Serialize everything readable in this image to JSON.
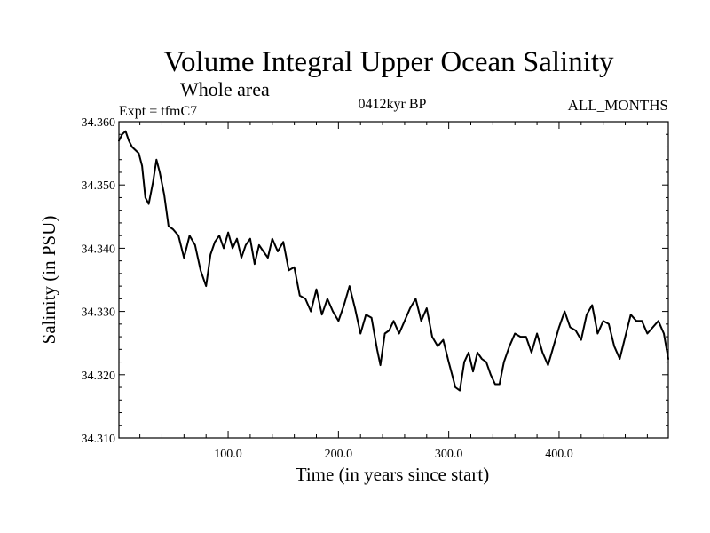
{
  "header": {
    "title": "Volume Integral Upper Ocean Salinity",
    "subtitle": "Whole area",
    "expt": "Expt = tfmC7",
    "period": "0412kyr BP",
    "months": "ALL_MONTHS"
  },
  "chart_data": {
    "type": "line",
    "title": "Volume Integral Upper Ocean Salinity",
    "subtitle": "Whole area",
    "xlabel": "Time (in years since start)",
    "ylabel": "Salinity (in PSU)",
    "xlim": [
      1,
      499
    ],
    "ylim": [
      34.31,
      34.36
    ],
    "x_ticks": [
      100,
      200,
      300,
      400
    ],
    "x_tick_labels": [
      "100.0",
      "200.0",
      "300.0",
      "400.0"
    ],
    "y_ticks": [
      34.31,
      34.32,
      34.33,
      34.34,
      34.35,
      34.36
    ],
    "y_tick_labels": [
      "34.310",
      "34.320",
      "34.330",
      "34.340",
      "34.350",
      "34.360"
    ],
    "grid": false,
    "series": [
      {
        "name": "salinity",
        "color": "#000000",
        "x": [
          1,
          4,
          7,
          10,
          13,
          16,
          19,
          22,
          25,
          28,
          32,
          35,
          38,
          42,
          46,
          50,
          55,
          60,
          65,
          70,
          75,
          80,
          84,
          88,
          92,
          96,
          100,
          104,
          108,
          112,
          116,
          120,
          124,
          128,
          132,
          136,
          140,
          145,
          150,
          155,
          160,
          165,
          170,
          175,
          180,
          185,
          190,
          195,
          200,
          205,
          210,
          215,
          220,
          225,
          230,
          235,
          238,
          242,
          246,
          250,
          255,
          260,
          265,
          270,
          275,
          280,
          285,
          290,
          295,
          300,
          303,
          306,
          310,
          314,
          318,
          322,
          326,
          330,
          334,
          338,
          342,
          346,
          350,
          355,
          360,
          365,
          370,
          375,
          380,
          385,
          390,
          395,
          400,
          405,
          410,
          415,
          420,
          425,
          430,
          435,
          440,
          445,
          450,
          455,
          460,
          465,
          470,
          475,
          480,
          485,
          490,
          495,
          499
        ],
        "values": [
          34.357,
          34.358,
          34.3585,
          34.357,
          34.356,
          34.3555,
          34.355,
          34.353,
          34.348,
          34.347,
          34.3505,
          34.354,
          34.352,
          34.3485,
          34.3435,
          34.343,
          34.342,
          34.3385,
          34.342,
          34.3405,
          34.3365,
          34.334,
          34.339,
          34.341,
          34.342,
          34.34,
          34.3425,
          34.34,
          34.3415,
          34.3385,
          34.3405,
          34.3415,
          34.3375,
          34.3405,
          34.3395,
          34.3385,
          34.3415,
          34.3395,
          34.341,
          34.3365,
          34.337,
          34.3325,
          34.332,
          34.33,
          34.3335,
          34.3295,
          34.332,
          34.33,
          34.3285,
          34.331,
          34.334,
          34.3305,
          34.3265,
          34.3295,
          34.329,
          34.324,
          34.3215,
          34.3265,
          34.327,
          34.3285,
          34.3265,
          34.3285,
          34.3305,
          34.332,
          34.3285,
          34.3305,
          34.326,
          34.3245,
          34.3255,
          34.322,
          34.32,
          34.318,
          34.3175,
          34.322,
          34.3235,
          34.3205,
          34.3235,
          34.3225,
          34.322,
          34.32,
          34.3185,
          34.3185,
          34.322,
          34.3245,
          34.3265,
          34.326,
          34.326,
          34.3235,
          34.3265,
          34.3235,
          34.3215,
          34.3245,
          34.3275,
          34.33,
          34.3275,
          34.327,
          34.3255,
          34.3295,
          34.331,
          34.3265,
          34.3285,
          34.328,
          34.3245,
          34.3225,
          34.326,
          34.3295,
          34.3285,
          34.3285,
          34.3265,
          34.3275,
          34.3285,
          34.3265,
          34.3225
        ]
      }
    ]
  }
}
